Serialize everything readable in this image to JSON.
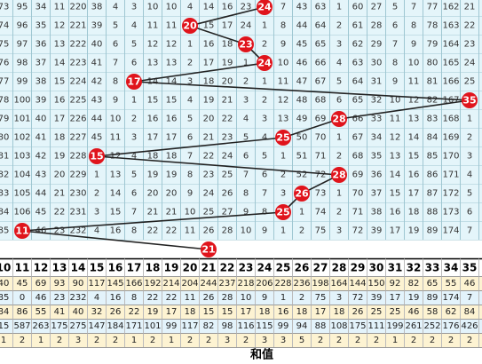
{
  "header_numbers": [
    10,
    11,
    12,
    13,
    14,
    15,
    16,
    17,
    18,
    19,
    20,
    21,
    22,
    23,
    24,
    25,
    26,
    27,
    28,
    29,
    30,
    31,
    32,
    33,
    34,
    35
  ],
  "rows": [
    {
      "hit": 24,
      "cells": [
        73,
        95,
        34,
        11,
        220,
        38,
        4,
        3,
        10,
        10,
        4,
        14,
        16,
        23,
        null,
        7,
        43,
        63,
        1,
        60,
        27,
        5,
        7,
        77,
        162,
        21
      ]
    },
    {
      "hit": 20,
      "cells": [
        74,
        96,
        35,
        12,
        221,
        39,
        5,
        4,
        11,
        11,
        null,
        15,
        17,
        24,
        1,
        8,
        44,
        64,
        2,
        61,
        28,
        6,
        8,
        78,
        163,
        22
      ]
    },
    {
      "hit": 23,
      "cells": [
        75,
        97,
        36,
        13,
        222,
        40,
        6,
        5,
        12,
        12,
        1,
        16,
        18,
        null,
        2,
        9,
        45,
        65,
        3,
        62,
        29,
        7,
        9,
        79,
        164,
        23
      ]
    },
    {
      "hit": 24,
      "cells": [
        76,
        98,
        37,
        14,
        223,
        41,
        7,
        6,
        13,
        13,
        2,
        17,
        19,
        1,
        null,
        10,
        46,
        66,
        4,
        63,
        30,
        8,
        10,
        80,
        165,
        24
      ]
    },
    {
      "hit": 17,
      "cells": [
        77,
        99,
        38,
        15,
        224,
        42,
        8,
        null,
        14,
        14,
        3,
        18,
        20,
        2,
        1,
        11,
        47,
        67,
        5,
        64,
        31,
        9,
        11,
        81,
        166,
        25
      ]
    },
    {
      "hit": 35,
      "cells": [
        78,
        100,
        39,
        16,
        225,
        43,
        9,
        1,
        15,
        15,
        4,
        19,
        21,
        3,
        2,
        12,
        48,
        68,
        6,
        65,
        32,
        10,
        12,
        82,
        167,
        null
      ]
    },
    {
      "hit": 28,
      "cells": [
        79,
        101,
        40,
        17,
        226,
        44,
        10,
        2,
        16,
        16,
        5,
        20,
        22,
        4,
        3,
        13,
        49,
        69,
        null,
        66,
        33,
        11,
        13,
        83,
        168,
        1
      ]
    },
    {
      "hit": 25,
      "cells": [
        80,
        102,
        41,
        18,
        227,
        45,
        11,
        3,
        17,
        17,
        6,
        21,
        23,
        5,
        4,
        null,
        50,
        70,
        1,
        67,
        34,
        12,
        14,
        84,
        169,
        2
      ]
    },
    {
      "hit": 15,
      "cells": [
        81,
        103,
        42,
        19,
        228,
        null,
        12,
        4,
        18,
        18,
        7,
        22,
        24,
        6,
        5,
        1,
        51,
        71,
        2,
        68,
        35,
        13,
        15,
        85,
        170,
        3
      ]
    },
    {
      "hit": 28,
      "cells": [
        82,
        104,
        43,
        20,
        229,
        1,
        13,
        5,
        19,
        19,
        8,
        23,
        25,
        7,
        6,
        2,
        52,
        72,
        null,
        69,
        36,
        14,
        16,
        86,
        171,
        4
      ]
    },
    {
      "hit": 26,
      "cells": [
        83,
        105,
        44,
        21,
        230,
        2,
        14,
        6,
        20,
        20,
        9,
        24,
        26,
        8,
        7,
        3,
        null,
        73,
        1,
        70,
        37,
        15,
        17,
        87,
        172,
        5
      ]
    },
    {
      "hit": 25,
      "cells": [
        84,
        106,
        45,
        22,
        231,
        3,
        15,
        7,
        21,
        21,
        10,
        25,
        27,
        9,
        8,
        null,
        1,
        74,
        2,
        71,
        38,
        16,
        18,
        88,
        173,
        6
      ]
    },
    {
      "hit": 11,
      "cells": [
        85,
        null,
        46,
        23,
        232,
        4,
        16,
        8,
        22,
        22,
        11,
        26,
        28,
        10,
        9,
        1,
        2,
        75,
        3,
        72,
        39,
        17,
        19,
        89,
        174,
        7
      ]
    },
    {
      "hit": 21
    }
  ],
  "stats": [
    [
      40,
      45,
      69,
      93,
      90,
      117,
      145,
      166,
      192,
      214,
      204,
      244,
      237,
      218,
      206,
      228,
      236,
      198,
      164,
      144,
      150,
      92,
      82,
      65,
      55,
      46
    ],
    [
      85,
      0,
      46,
      23,
      232,
      4,
      16,
      8,
      22,
      22,
      11,
      26,
      28,
      10,
      9,
      1,
      2,
      75,
      3,
      72,
      39,
      17,
      19,
      89,
      174,
      7
    ],
    [
      84,
      86,
      55,
      41,
      40,
      32,
      26,
      22,
      19,
      17,
      18,
      15,
      15,
      17,
      18,
      16,
      18,
      17,
      18,
      26,
      25,
      25,
      46,
      58,
      62,
      84
    ],
    [
      15,
      587,
      263,
      175,
      275,
      147,
      184,
      171,
      101,
      99,
      117,
      82,
      98,
      116,
      115,
      99,
      94,
      88,
      108,
      175,
      111,
      199,
      261,
      252,
      176,
      426
    ],
    [
      1,
      2,
      1,
      2,
      3,
      2,
      2,
      1,
      2,
      1,
      2,
      2,
      3,
      2,
      3,
      3,
      5,
      2,
      2,
      2,
      2,
      1,
      2,
      2,
      2,
      2
    ]
  ],
  "footer": "和值"
}
